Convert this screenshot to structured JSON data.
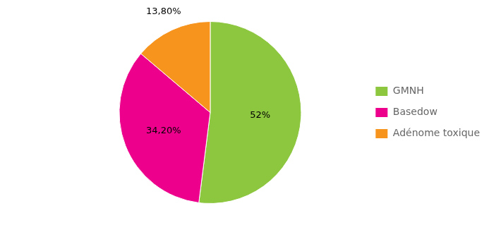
{
  "chart_data": {
    "type": "pie",
    "categories": [
      "GMNH",
      "Basedow",
      "Adénome toxique"
    ],
    "values": [
      52.0,
      34.2,
      13.8
    ],
    "value_labels": [
      "52%",
      "34,20%",
      "13,80%"
    ],
    "colors": [
      "#8DC63F",
      "#EC008C",
      "#F7941D"
    ],
    "data_labels": true,
    "legend": "right"
  }
}
